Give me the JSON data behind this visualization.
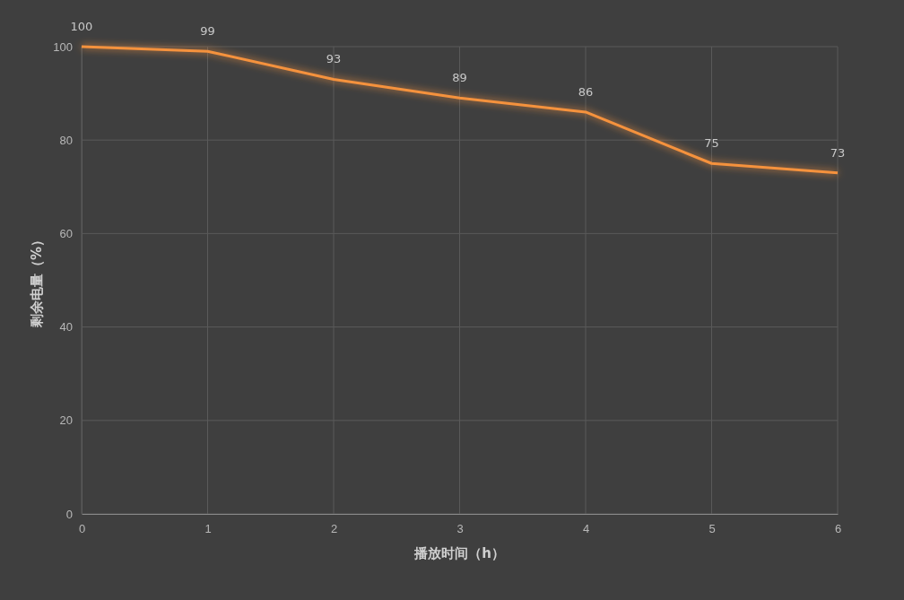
{
  "chart_data": {
    "type": "line",
    "xlabel": "播放时间（h）",
    "ylabel": "剩余电量（%）",
    "x": [
      0,
      1,
      2,
      3,
      4,
      5,
      6
    ],
    "series": [
      {
        "color": "#f5923e",
        "values": [
          100,
          99,
          93,
          89,
          86,
          75,
          73
        ]
      }
    ],
    "xlim": [
      0,
      6
    ],
    "xticks": [
      0,
      1,
      2,
      3,
      4,
      5,
      6
    ],
    "ylim": [
      0,
      100
    ],
    "yticks": [
      0,
      20,
      40,
      60,
      80,
      100
    ],
    "grid": true,
    "data_labels": true,
    "marker": "none",
    "line_style": "solid"
  }
}
